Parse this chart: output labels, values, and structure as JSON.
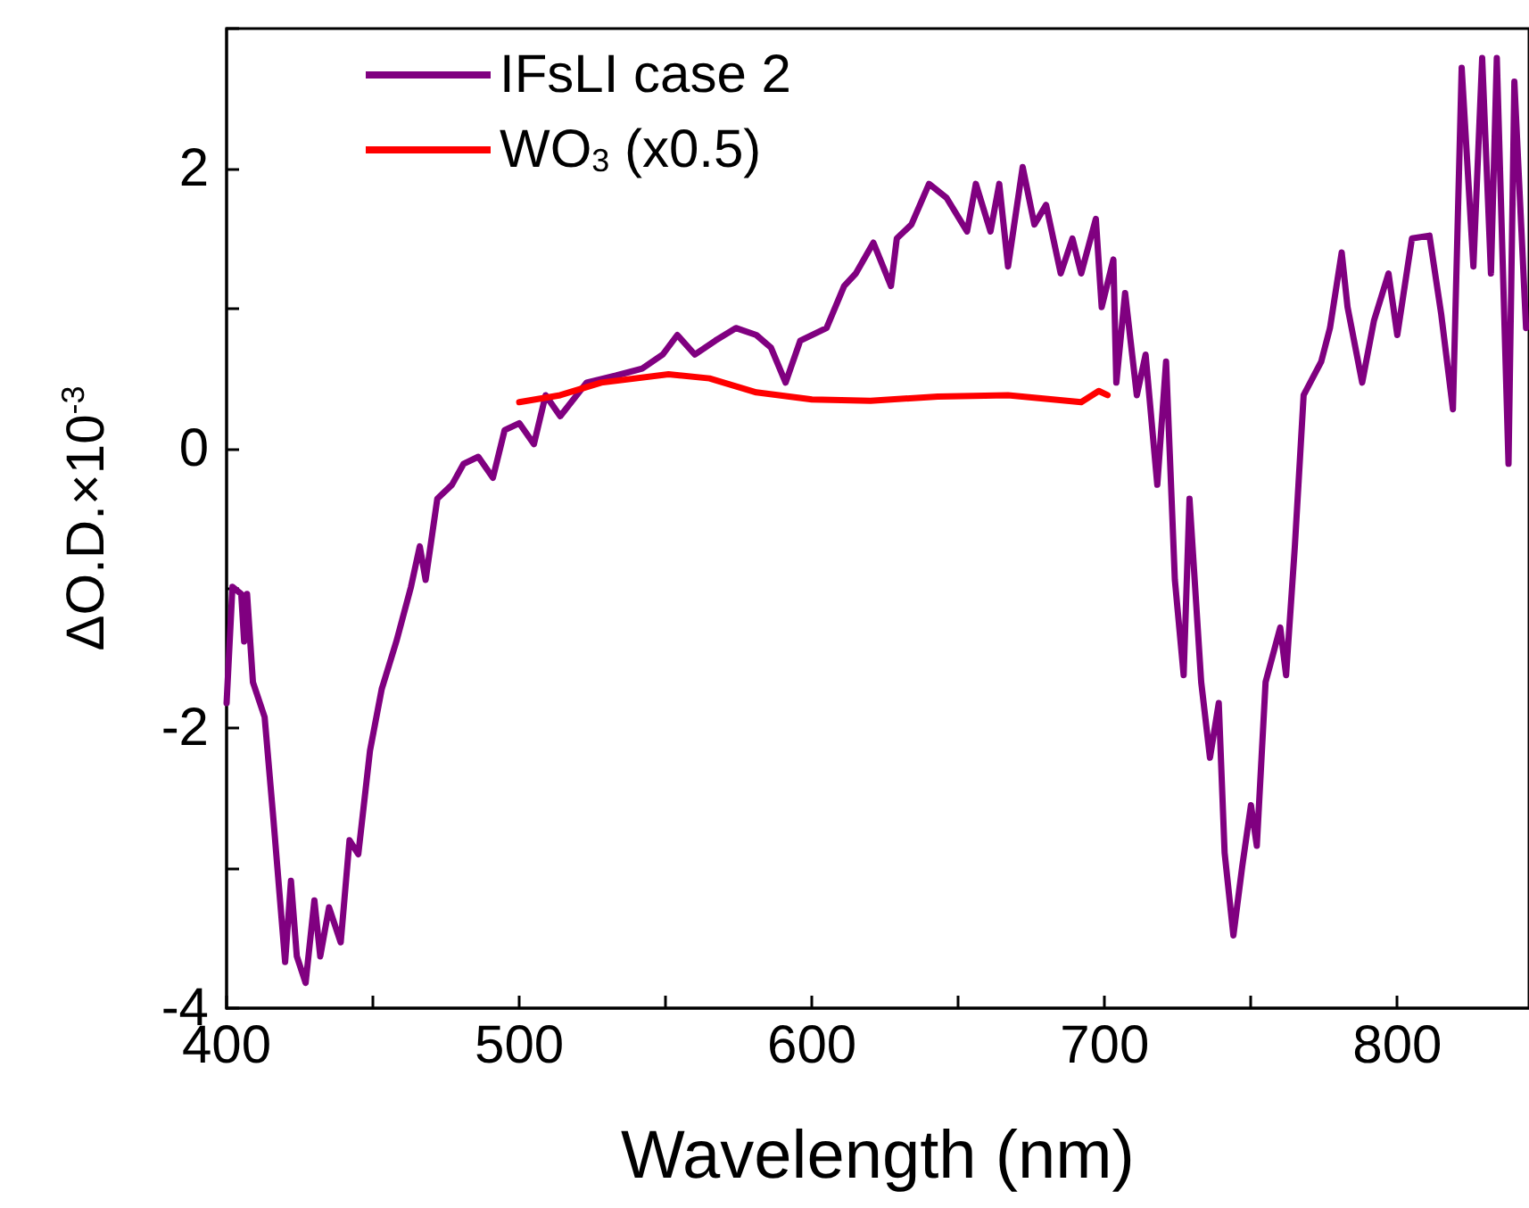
{
  "chart_data": {
    "type": "line",
    "xlabel": "Wavelength (nm)",
    "ylabel": "ΔO.D.×10$^{-3}$",
    "xlim": [
      400,
      845
    ],
    "ylim": [
      -4,
      3
    ],
    "xticks": [
      400,
      {
        "value": 450,
        "label": null
      },
      500,
      {
        "value": 550,
        "label": null
      },
      600,
      {
        "value": 650,
        "label": null
      },
      700,
      {
        "value": 750,
        "label": null
      },
      800
    ],
    "yticks": [
      -4,
      {
        "value": -3,
        "label": null
      },
      -2,
      {
        "value": -1,
        "label": null
      },
      0,
      {
        "value": 1,
        "label": null
      },
      2,
      {
        "value": 3,
        "label": null
      }
    ],
    "grid": false,
    "legend": "top left",
    "marker": "none",
    "line_style": "solid",
    "series": [
      {
        "name": "IFsLI case 2",
        "color": "#800080",
        "x": [
          400,
          402,
          405,
          406,
          407,
          409,
          413,
          416,
          420,
          422,
          424,
          427,
          430,
          432,
          435,
          439,
          442,
          445,
          449,
          453,
          458,
          463,
          466,
          468,
          472,
          477,
          481,
          486,
          491,
          495,
          500,
          505,
          509,
          514,
          523,
          533,
          542,
          549,
          554,
          560,
          567,
          574,
          581,
          586,
          591,
          596,
          605,
          611,
          615,
          621,
          627,
          629,
          634,
          640,
          646,
          653,
          656,
          661,
          664,
          667,
          672,
          676,
          680,
          685,
          689,
          692,
          697,
          699,
          703,
          704,
          707,
          711,
          714,
          718,
          721,
          724,
          727,
          729,
          733,
          736,
          739,
          741,
          744,
          747,
          750,
          752,
          755,
          760,
          762,
          765,
          768,
          774,
          777,
          781,
          783,
          788,
          792,
          797,
          800,
          805,
          811,
          815,
          819,
          822,
          826,
          829,
          832,
          834,
          838,
          840,
          844
        ],
        "values": [
          -1.82,
          -0.99,
          -1.04,
          -1.38,
          -1.04,
          -1.67,
          -1.92,
          -2.65,
          -3.67,
          -3.09,
          -3.63,
          -3.82,
          -3.23,
          -3.63,
          -3.28,
          -3.53,
          -2.8,
          -2.9,
          -2.16,
          -1.72,
          -1.38,
          -0.99,
          -0.7,
          -0.94,
          -0.36,
          -0.26,
          -0.11,
          -0.06,
          -0.21,
          0.13,
          0.18,
          0.03,
          0.38,
          0.23,
          0.47,
          0.52,
          0.57,
          0.67,
          0.81,
          0.67,
          0.77,
          0.86,
          0.81,
          0.72,
          0.47,
          0.77,
          0.86,
          1.16,
          1.25,
          1.47,
          1.16,
          1.5,
          1.6,
          1.89,
          1.79,
          1.55,
          1.89,
          1.55,
          1.89,
          1.3,
          2.01,
          1.6,
          1.74,
          1.25,
          1.5,
          1.25,
          1.64,
          1.01,
          1.35,
          0.47,
          1.11,
          0.38,
          0.67,
          -0.26,
          0.62,
          -0.94,
          -1.62,
          -0.36,
          -1.67,
          -2.21,
          -1.82,
          -2.89,
          -3.48,
          -2.99,
          -2.55,
          -2.84,
          -1.67,
          -1.28,
          -1.62,
          -0.7,
          0.38,
          0.62,
          0.86,
          1.4,
          1.01,
          0.47,
          0.91,
          1.25,
          0.81,
          1.5,
          1.52,
          0.96,
          0.28,
          2.72,
          1.3,
          2.79,
          1.25,
          2.79,
          -0.11,
          2.62,
          0.86
        ]
      },
      {
        "name": "WO$_{3}$ (x0.5)",
        "color": "#ff0000",
        "x": [
          500,
          514,
          528,
          551,
          565,
          581,
          600,
          620,
          643,
          667,
          692,
          698,
          701
        ],
        "values": [
          0.33,
          0.38,
          0.47,
          0.53,
          0.5,
          0.4,
          0.35,
          0.34,
          0.37,
          0.38,
          0.33,
          0.41,
          0.38
        ]
      }
    ]
  }
}
